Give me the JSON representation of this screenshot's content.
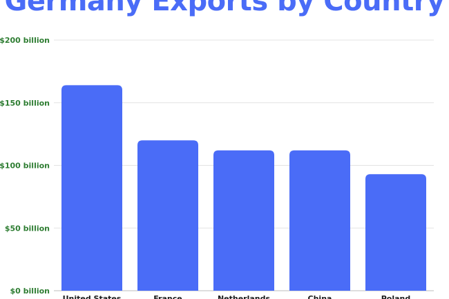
{
  "chart_data": {
    "type": "bar",
    "title": "Germany Exports by Country",
    "categories": [
      "United States",
      "France",
      "Netherlands",
      "China",
      "Poland"
    ],
    "values": [
      164,
      120,
      112,
      112,
      93
    ],
    "unit": "billion USD",
    "ylim": [
      0,
      200
    ],
    "yticks": [
      0,
      50,
      100,
      150,
      200
    ],
    "ytick_labels": [
      "$0 billion",
      "$50 billion",
      "$100 billion",
      "$150 billion",
      "$200 billion"
    ],
    "xlabel": "",
    "ylabel": "",
    "grid": true,
    "legend": "none"
  },
  "colors": {
    "title": "#4a6cf7",
    "bar": "#4a6cf7",
    "tick_label": "#2e7d32",
    "category_label": "#1a1a1a",
    "grid": "#e3e3e3",
    "baseline": "#bdbdbd"
  }
}
